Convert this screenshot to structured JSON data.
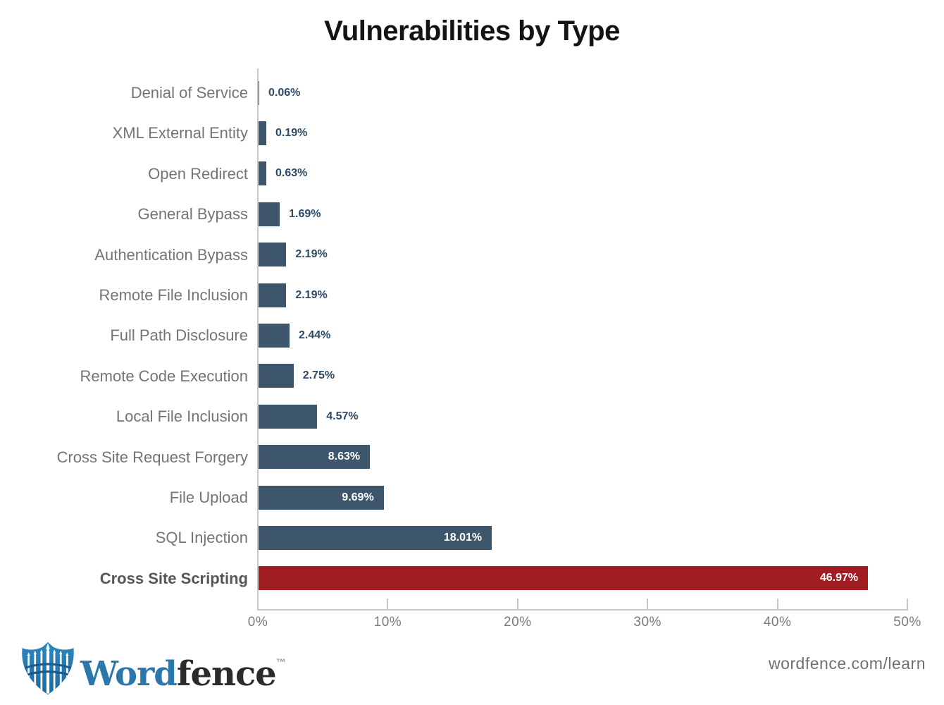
{
  "title": "Vulnerabilities by Type",
  "chart_data": {
    "type": "bar",
    "orientation": "horizontal",
    "title": "Vulnerabilities by Type",
    "categories": [
      "Denial of Service",
      "XML External Entity",
      "Open Redirect",
      "General Bypass",
      "Authentication Bypass",
      "Remote File Inclusion",
      "Full Path Disclosure",
      "Remote Code Execution",
      "Local File Inclusion",
      "Cross Site Request Forgery",
      "File Upload",
      "SQL Injection",
      "Cross Site Scripting"
    ],
    "values": [
      0.06,
      0.19,
      0.63,
      1.69,
      2.19,
      2.19,
      2.44,
      2.75,
      4.57,
      8.63,
      9.69,
      18.01,
      46.97
    ],
    "value_labels": [
      "0.06%",
      "0.19%",
      "0.63%",
      "1.69%",
      "2.19%",
      "2.19%",
      "2.44%",
      "2.75%",
      "4.57%",
      "8.63%",
      "9.69%",
      "18.01%",
      "46.97%"
    ],
    "x_ticks": [
      "0%",
      "10%",
      "20%",
      "30%",
      "40%",
      "50%"
    ],
    "xlim": [
      0,
      50
    ],
    "grid": false,
    "legend": false,
    "highlighted_category": "Cross Site Scripting"
  },
  "colors": {
    "bar": "#3d566b",
    "highlight": "#a01d21",
    "value_text_outside": "#2d4a66",
    "value_text_inside": "#ffffff",
    "category_text": "#737478",
    "highlight_category_text": "#55565a",
    "axis_line": "#c5c6c8",
    "tick_text": "#7a7b7e",
    "logo_blue": "#2a77ab",
    "logo_dark": "#2a2b2d"
  },
  "footer": {
    "logo": {
      "word": "Word",
      "fence": "fence",
      "trademark": "™",
      "icon": "wordfence-shield-icon"
    },
    "url": "wordfence.com/learn"
  }
}
